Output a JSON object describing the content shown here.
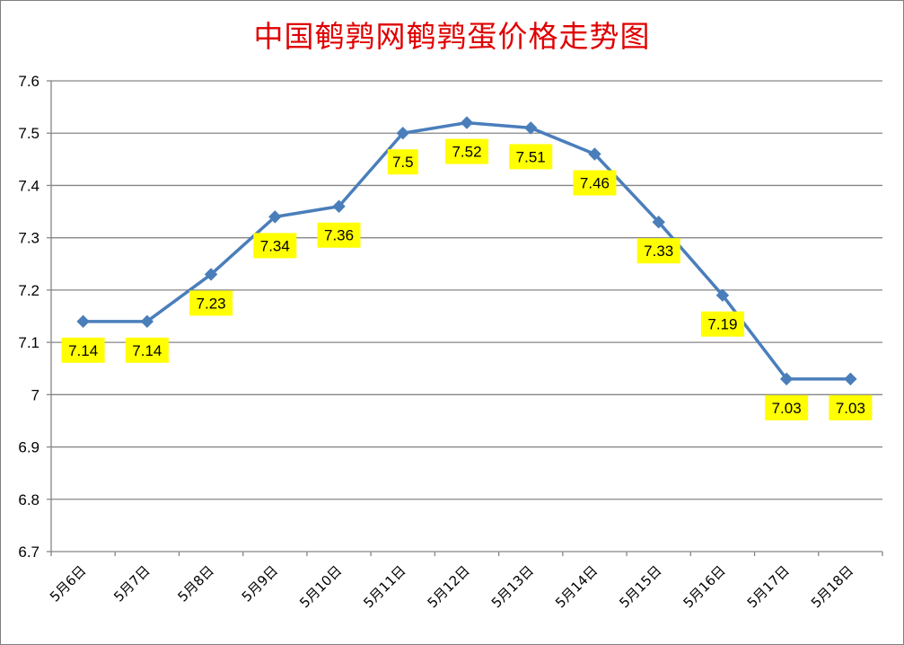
{
  "chart_data": {
    "type": "line",
    "title": "中国鹌鹑网鹌鹑蛋价格走势图",
    "categories": [
      "5月6日",
      "5月7日",
      "5月8日",
      "5月9日",
      "5月10日",
      "5月11日",
      "5月12日",
      "5月13日",
      "5月14日",
      "5月15日",
      "5月16日",
      "5月17日",
      "5月18日"
    ],
    "series": [
      {
        "values": [
          7.14,
          7.14,
          7.23,
          7.34,
          7.36,
          7.5,
          7.52,
          7.51,
          7.46,
          7.33,
          7.19,
          7.03,
          7.03
        ],
        "data_labels": [
          "7.14",
          "7.14",
          "7.23",
          "7.34",
          "7.36",
          "7.5",
          "7.52",
          "7.51",
          "7.46",
          "7.33",
          "7.19",
          "7.03",
          "7.03"
        ],
        "color": "#4a7ebb",
        "marker": "diamond"
      }
    ],
    "yticks": [
      "7.6",
      "7.5",
      "7.4",
      "7.3",
      "7.2",
      "7.1",
      "7",
      "6.9",
      "6.8",
      "6.7"
    ],
    "ylim": [
      6.7,
      7.6
    ],
    "xlabel": "",
    "ylabel": "",
    "grid": true,
    "legend": "none",
    "label_background": "#ffff00",
    "title_color": "#e00000"
  }
}
